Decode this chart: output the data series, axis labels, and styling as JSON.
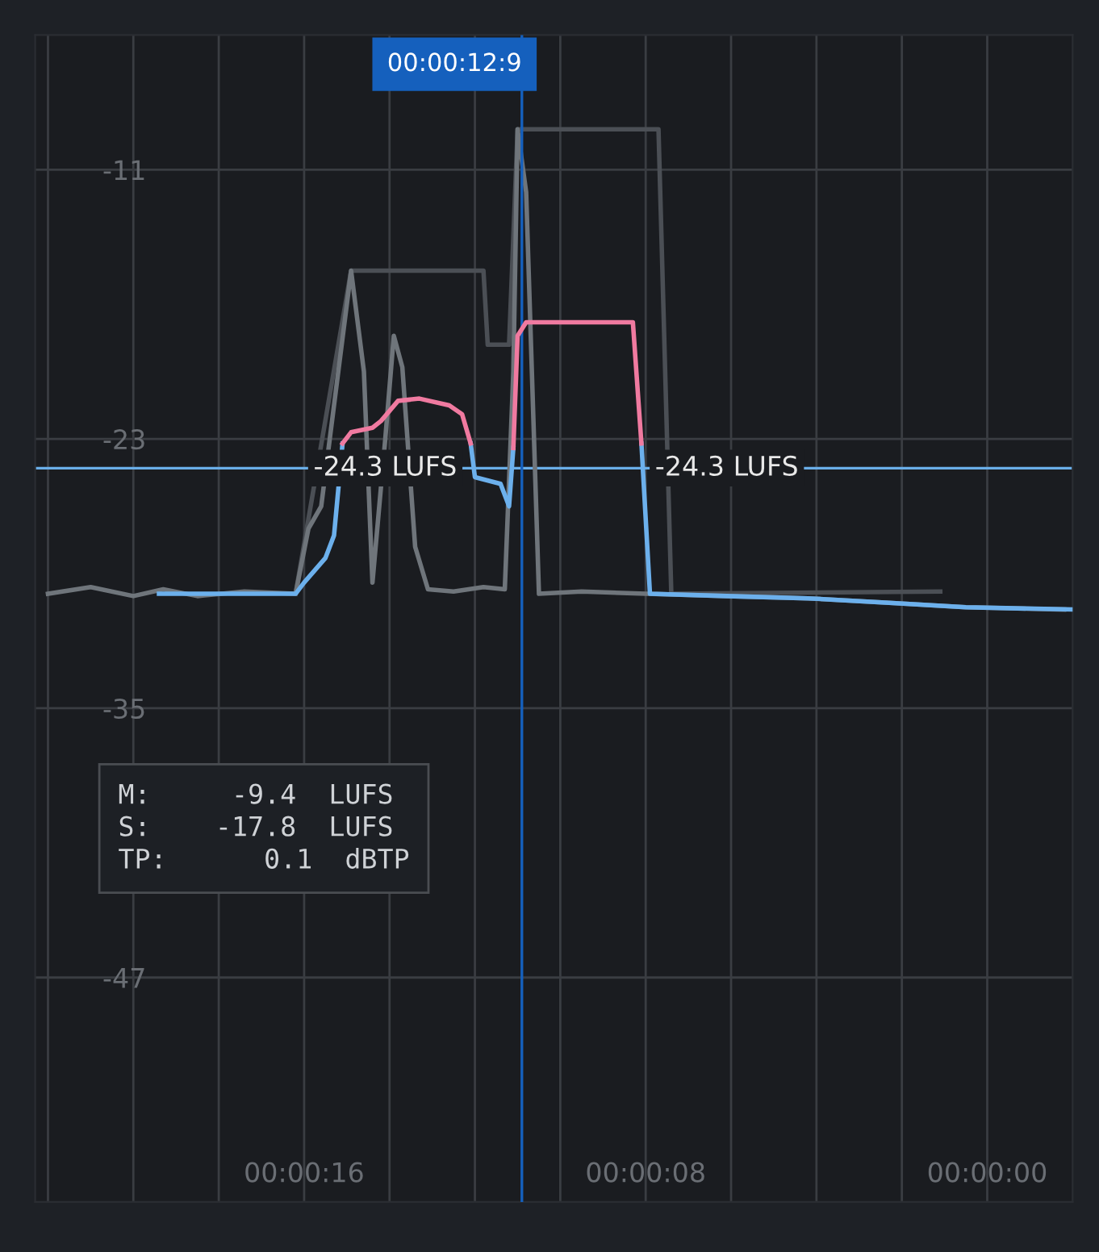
{
  "chart_data": {
    "type": "line",
    "xlim": [
      22.3,
      -2.0
    ],
    "ylim": [
      -57,
      -5
    ],
    "xticks": [
      {
        "value": 22,
        "label": null
      },
      {
        "value": 20,
        "label": null
      },
      {
        "value": 18,
        "label": null
      },
      {
        "value": 16,
        "label": "00:00:16"
      },
      {
        "value": 14,
        "label": null
      },
      {
        "value": 12,
        "label": null
      },
      {
        "value": 10,
        "label": null
      },
      {
        "value": 8,
        "label": "00:00:08"
      },
      {
        "value": 6,
        "label": null
      },
      {
        "value": 4,
        "label": null
      },
      {
        "value": 2,
        "label": null
      },
      {
        "value": 0,
        "label": "00:00:00"
      }
    ],
    "yticks": [
      -11,
      -23,
      -35,
      -47
    ],
    "grid": true,
    "legend": false,
    "marker": "none",
    "line_style": "solid",
    "series": [
      {
        "color": "#4b4f55",
        "x": [
          16.2,
          14.9,
          11.8,
          11.7,
          11.2,
          11.0,
          7.7,
          7.4,
          1.1
        ],
        "values": [
          -29.9,
          -15.5,
          -15.5,
          -18.8,
          -18.8,
          -9.2,
          -9.2,
          -29.9,
          -29.8
        ]
      },
      {
        "color": "#6f757b",
        "x": [
          22.0,
          21.0,
          20.0,
          19.3,
          18.5,
          17.4,
          16.2,
          15.9,
          15.6,
          15.2,
          14.9,
          14.6,
          14.4,
          14.1,
          13.9,
          13.7,
          13.4,
          13.1,
          12.5,
          11.8,
          11.3,
          11.1,
          11.0,
          10.8,
          10.5,
          9.5,
          8.0,
          6.1,
          4.2,
          2.3,
          0.5,
          -1.8
        ],
        "values": [
          -29.9,
          -29.6,
          -30.0,
          -29.7,
          -30.0,
          -29.8,
          -29.9,
          -27.0,
          -26.0,
          -20.0,
          -15.5,
          -20.0,
          -29.4,
          -23.0,
          -18.4,
          -19.8,
          -27.8,
          -29.7,
          -29.8,
          -29.6,
          -29.7,
          -20.0,
          -9.2,
          -12.0,
          -29.9,
          -29.8,
          -29.9,
          -30.0,
          -30.1,
          -30.3,
          -30.5,
          -30.6
        ]
      },
      {
        "color": "#6cb0ec",
        "x": [
          19.4,
          16.2,
          16.0,
          15.5,
          15.3,
          15.1
        ],
        "values": [
          -29.9,
          -29.9,
          -29.4,
          -28.3,
          -27.3,
          -23.2
        ]
      },
      {
        "color": "#6cb0ec",
        "x": [
          12.1,
          12.0,
          11.4,
          11.2,
          11.1
        ],
        "values": [
          -23.2,
          -24.7,
          -25.0,
          -26.0,
          -23.4
        ]
      },
      {
        "color": "#6cb0ec",
        "x": [
          8.1,
          7.9,
          6.1,
          4.2,
          2.3,
          0.5,
          -2.0
        ],
        "values": [
          -23.2,
          -29.9,
          -30.0,
          -30.1,
          -30.3,
          -30.5,
          -30.6
        ]
      },
      {
        "color": "#f07aa0",
        "x": [
          15.1,
          14.9,
          14.4,
          14.2,
          13.8,
          13.3,
          12.6,
          12.3,
          12.1
        ],
        "values": [
          -23.2,
          -22.7,
          -22.5,
          -22.2,
          -21.3,
          -21.2,
          -21.5,
          -21.9,
          -23.2
        ]
      },
      {
        "color": "#f07aa0",
        "x": [
          11.1,
          11.0,
          10.8,
          8.3,
          8.1
        ],
        "values": [
          -23.4,
          -18.4,
          -17.8,
          -17.8,
          -23.2
        ]
      }
    ],
    "ref_lines": [
      {
        "axis": "y",
        "value": -24.3,
        "color": "#6aaee8"
      },
      {
        "axis": "x",
        "value": 10.9,
        "color": "#1560bd"
      }
    ],
    "annotations": [
      {
        "text": "-24.3 LUFS",
        "x": 14.1,
        "y": -24.3
      },
      {
        "text": "-24.3 LUFS",
        "x": 6.1,
        "y": -24.3
      },
      "00:00:12:9",
      "M:     -9.4  LUFS\nS:    -17.8  LUFS\nTP:      0.1  dBTP"
    ]
  }
}
